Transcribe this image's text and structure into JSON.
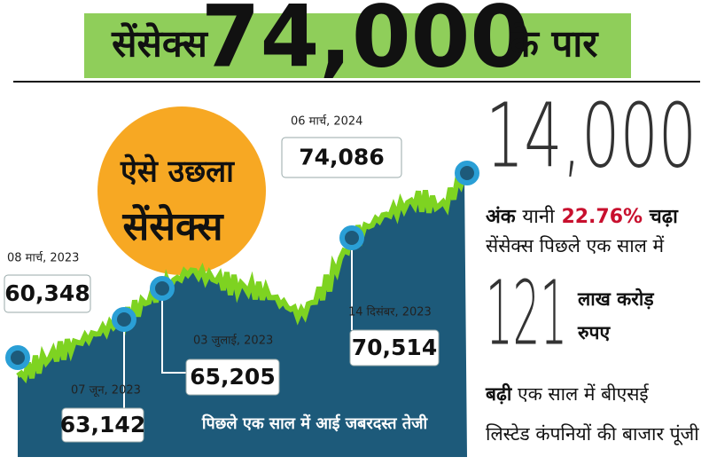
{
  "header": {
    "prefix": "सेंसेक्स",
    "number": "74,000",
    "suffix": "के पार"
  },
  "graphic": {
    "badge": [
      "ऐसे उछला",
      "सेंसेक्स"
    ],
    "caption": "पिछले एक साल में आई जबरदस्त तेजी",
    "points": [
      {
        "date": "08 मार्च, 2023",
        "value": "60,348"
      },
      {
        "date": "07 जून, 2023",
        "value": "63,142"
      },
      {
        "date": "03 जुलाई, 2023",
        "value": "65,205"
      },
      {
        "date": "14 दिसंबर, 2023",
        "value": "70,514"
      },
      {
        "date": "06 मार्च, 2024",
        "value": "74,086"
      }
    ]
  },
  "facts": {
    "gain_points": "14,000",
    "gain_line1": [
      "अंक",
      "यानी",
      "22.76%",
      "चढ़ा"
    ],
    "gain_line2": "सेंसेक्स पिछले एक साल में",
    "cap_number": "121",
    "cap_unit": [
      "लाख करोड़",
      "रुपए"
    ],
    "cap_line1": [
      "बढ़ी",
      "एक साल में बीएसई"
    ],
    "cap_line2": "लिस्टेड कंपनियों की बाजार पूंजी"
  }
}
